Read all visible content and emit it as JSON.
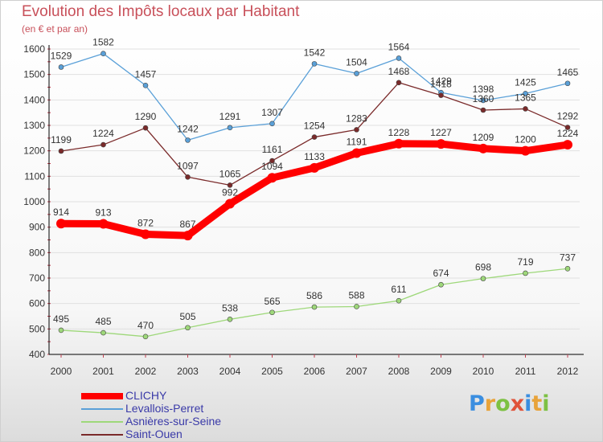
{
  "header": {
    "title": "Evolution des Impôts locaux par Habitant",
    "subtitle": "(en € et par an)"
  },
  "logo": {
    "text": "Proxiti",
    "letter_colors": [
      "#3a8ee0",
      "#e8a33a",
      "#7dc143",
      "#e0533a",
      "#3a8ee0",
      "#e8a33a",
      "#7dc143"
    ]
  },
  "colors": {
    "axis": "#000000",
    "grid": "#e0e0e0",
    "label": "#333333"
  },
  "chart_data": {
    "type": "line",
    "title": "Evolution des Impôts locaux par Habitant",
    "subtitle": "(en € et par an)",
    "xlabel": "",
    "ylabel": "",
    "ylim": [
      400,
      1600
    ],
    "yticks": [
      400,
      500,
      600,
      700,
      800,
      900,
      1000,
      1100,
      1200,
      1300,
      1400,
      1500,
      1600
    ],
    "grid": true,
    "legend_position": "bottom-left",
    "categories": [
      "2000",
      "2001",
      "2002",
      "2003",
      "2004",
      "2005",
      "2006",
      "2007",
      "2008",
      "2009",
      "2010",
      "2011",
      "2012"
    ],
    "series": [
      {
        "name": "CLICHY",
        "color": "#ff0000",
        "thick": true,
        "values": [
          914,
          913,
          872,
          867,
          992,
          1094,
          1133,
          1191,
          1228,
          1227,
          1209,
          1200,
          1224
        ]
      },
      {
        "name": "Levallois-Perret",
        "color": "#5aa0d8",
        "thick": false,
        "values": [
          1529,
          1582,
          1457,
          1242,
          1291,
          1307,
          1542,
          1504,
          1564,
          1429,
          1398,
          1425,
          1465
        ]
      },
      {
        "name": "Asnières-sur-Seine",
        "color": "#9ed87a",
        "thick": false,
        "values": [
          495,
          485,
          470,
          505,
          538,
          565,
          586,
          588,
          611,
          674,
          698,
          719,
          737
        ]
      },
      {
        "name": "Saint-Ouen",
        "color": "#7a2a2a",
        "thick": false,
        "values": [
          1199,
          1224,
          1290,
          1097,
          1065,
          1161,
          1254,
          1283,
          1468,
          1418,
          1360,
          1365,
          1292
        ]
      }
    ]
  }
}
